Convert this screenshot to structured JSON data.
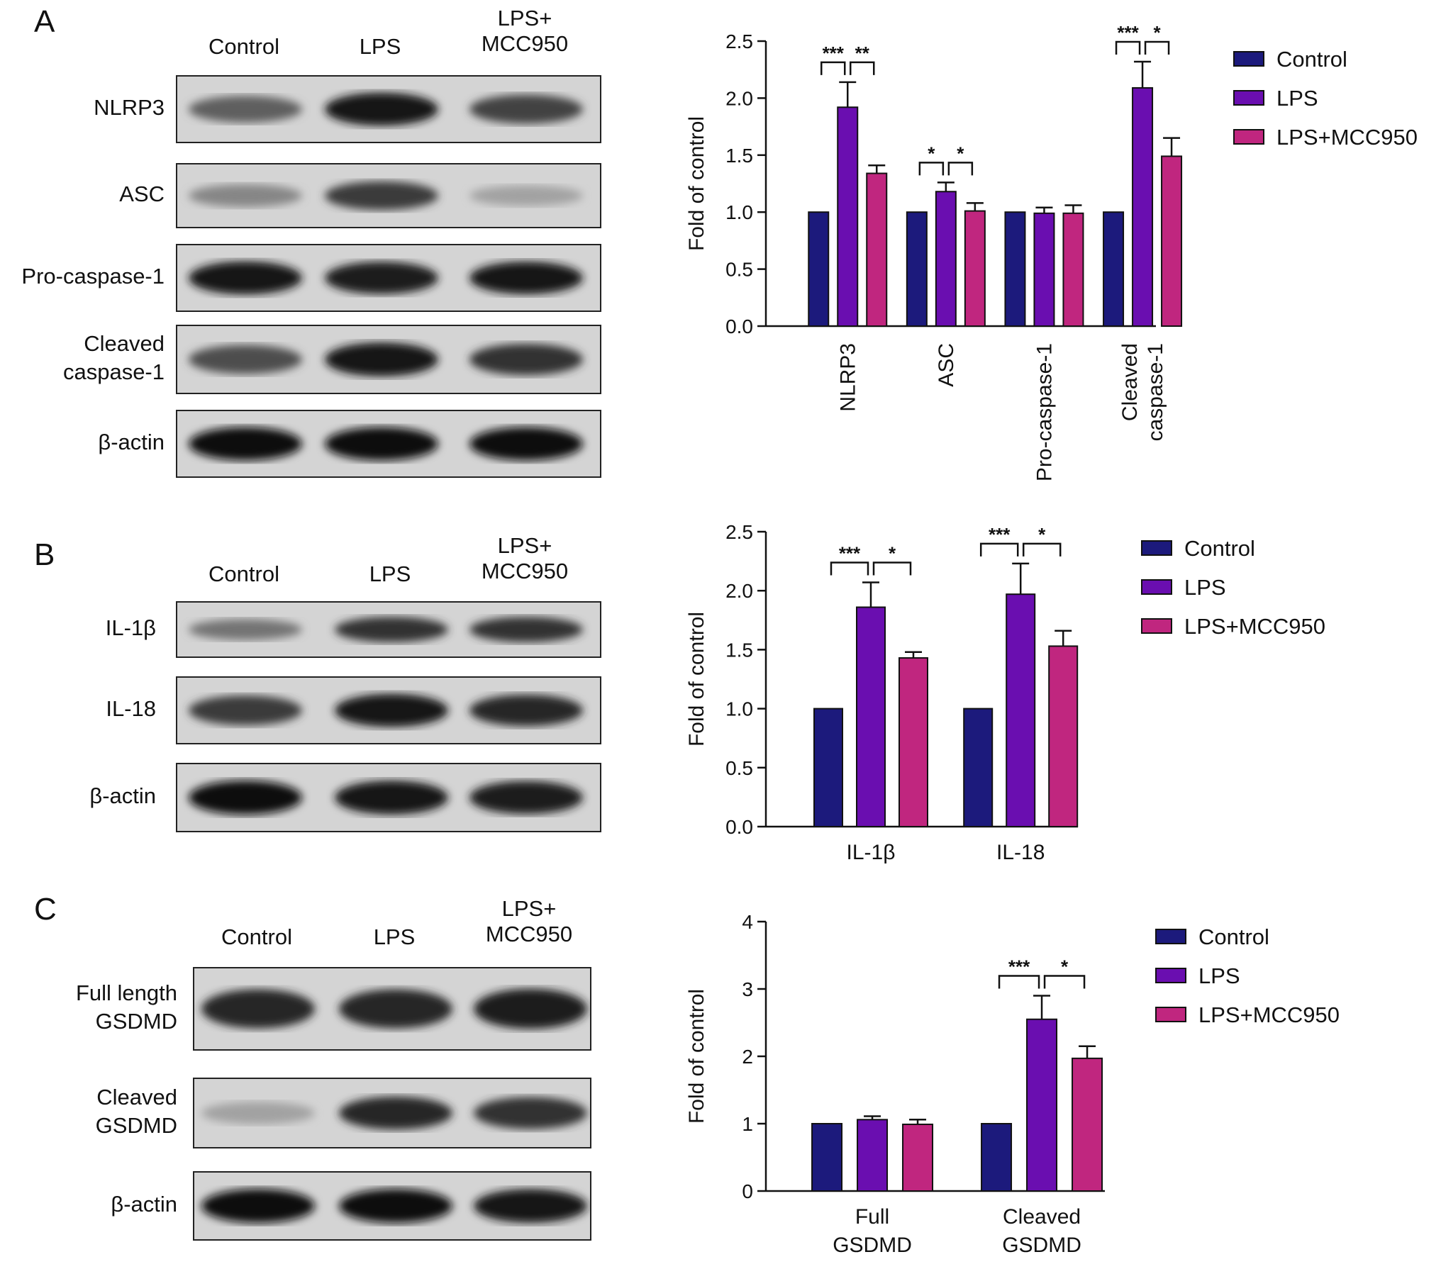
{
  "colors": {
    "control": "#1c1a7c",
    "lps": "#6a0eb0",
    "mcc": "#c0267f"
  },
  "panels": [
    {
      "letter": "A",
      "lanes": [
        "Control",
        "LPS",
        "LPS+\nMCC950"
      ],
      "rows": [
        {
          "label": "NLRP3",
          "intensity": [
            0.55,
            0.95,
            0.7
          ]
        },
        {
          "label": "ASC",
          "intensity": [
            0.35,
            0.75,
            0.2
          ]
        },
        {
          "label": "Pro-caspase-1",
          "intensity": [
            0.95,
            0.9,
            0.92
          ]
        },
        {
          "label": "Cleaved\ncaspase-1",
          "intensity": [
            0.65,
            0.95,
            0.8
          ]
        },
        {
          "label": "β-actin",
          "intensity": [
            0.97,
            0.97,
            0.97
          ]
        }
      ]
    },
    {
      "letter": "B",
      "lanes": [
        "Control",
        "LPS",
        "LPS+\nMCC950"
      ],
      "rows": [
        {
          "label": "IL-1β",
          "intensity": [
            0.45,
            0.8,
            0.8
          ]
        },
        {
          "label": "IL-18",
          "intensity": [
            0.75,
            0.95,
            0.85
          ]
        },
        {
          "label": "β-actin",
          "intensity": [
            0.97,
            0.95,
            0.9
          ]
        }
      ]
    },
    {
      "letter": "C",
      "lanes": [
        "Control",
        "LPS",
        "LPS+\nMCC950"
      ],
      "rows": [
        {
          "label": "Full length\nGSDMD",
          "intensity": [
            0.85,
            0.85,
            0.9
          ]
        },
        {
          "label": "Cleaved\nGSDMD",
          "intensity": [
            0.2,
            0.85,
            0.8
          ]
        },
        {
          "label": "β-actin",
          "intensity": [
            0.97,
            0.97,
            0.95
          ]
        }
      ]
    }
  ],
  "chart_data": [
    {
      "type": "bar",
      "categories": [
        "NLRP3",
        "ASC",
        "Pro-caspase-1",
        "Cleaved\ncaspase-1"
      ],
      "series": [
        {
          "name": "Control",
          "values": [
            1.0,
            1.0,
            1.0,
            1.0
          ],
          "errors": [
            0,
            0,
            0,
            0
          ]
        },
        {
          "name": "LPS",
          "values": [
            1.92,
            1.18,
            0.99,
            2.09
          ],
          "errors": [
            0.22,
            0.08,
            0.05,
            0.23
          ]
        },
        {
          "name": "LPS+MCC950",
          "values": [
            1.34,
            1.01,
            0.99,
            1.49
          ],
          "errors": [
            0.07,
            0.07,
            0.07,
            0.16
          ]
        }
      ],
      "ylabel": "Fold of control",
      "ylim": [
        0,
        2.5
      ],
      "yticks": [
        "0.0",
        "0.5",
        "1.0",
        "1.5",
        "2.0",
        "2.5"
      ],
      "significance": [
        {
          "category": 0,
          "left": "***",
          "right": "**"
        },
        {
          "category": 1,
          "left": "*",
          "right": "*"
        },
        {
          "category": 3,
          "left": "***",
          "right": "*"
        }
      ],
      "legend": "right",
      "grid": false
    },
    {
      "type": "bar",
      "categories": [
        "IL-1β",
        "IL-18"
      ],
      "series": [
        {
          "name": "Control",
          "values": [
            1.0,
            1.0
          ],
          "errors": [
            0,
            0
          ]
        },
        {
          "name": "LPS",
          "values": [
            1.86,
            1.97
          ],
          "errors": [
            0.21,
            0.26
          ]
        },
        {
          "name": "LPS+MCC950",
          "values": [
            1.43,
            1.53
          ],
          "errors": [
            0.05,
            0.13
          ]
        }
      ],
      "ylabel": "Fold of control",
      "ylim": [
        0,
        2.5
      ],
      "yticks": [
        "0.0",
        "0.5",
        "1.0",
        "1.5",
        "2.0",
        "2.5"
      ],
      "significance": [
        {
          "category": 0,
          "left": "***",
          "right": "*"
        },
        {
          "category": 1,
          "left": "***",
          "right": "*"
        }
      ],
      "legend": "right",
      "grid": false
    },
    {
      "type": "bar",
      "categories": [
        "Full\nGSDMD",
        "Cleaved\nGSDMD"
      ],
      "series": [
        {
          "name": "Control",
          "values": [
            1.0,
            1.0
          ],
          "errors": [
            0,
            0
          ]
        },
        {
          "name": "LPS",
          "values": [
            1.06,
            2.55
          ],
          "errors": [
            0.05,
            0.35
          ]
        },
        {
          "name": "LPS+MCC950",
          "values": [
            0.99,
            1.97
          ],
          "errors": [
            0.07,
            0.18
          ]
        }
      ],
      "ylabel": "Fold of control",
      "ylim": [
        0,
        4
      ],
      "yticks": [
        "0",
        "1",
        "2",
        "3",
        "4"
      ],
      "significance": [
        {
          "category": 1,
          "left": "***",
          "right": "*"
        }
      ],
      "legend": "right",
      "grid": false
    }
  ]
}
